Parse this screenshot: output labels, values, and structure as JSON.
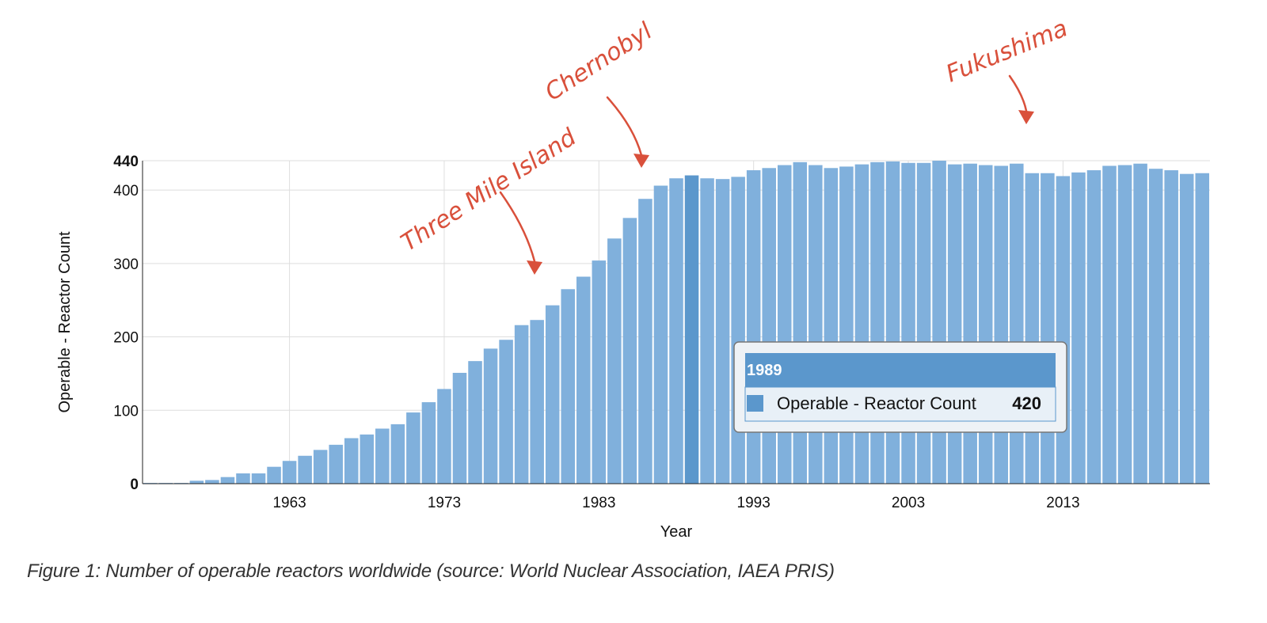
{
  "chart_data": {
    "type": "bar",
    "xlabel": "Year",
    "ylabel": "Operable - Reactor Count",
    "ylim": [
      0,
      440
    ],
    "yticks": [
      0,
      100,
      200,
      300,
      400,
      440
    ],
    "xticks": [
      1963,
      1973,
      1983,
      1993,
      2003,
      2013
    ],
    "grid": true,
    "colors": {
      "bar": "#80b0dc",
      "highlight": "#5b97cc",
      "tooltip_header": "#5b97cc",
      "annotation": "#d9503b"
    },
    "x": [
      1954,
      1955,
      1956,
      1957,
      1958,
      1959,
      1960,
      1961,
      1962,
      1963,
      1964,
      1965,
      1966,
      1967,
      1968,
      1969,
      1970,
      1971,
      1972,
      1973,
      1974,
      1975,
      1976,
      1977,
      1978,
      1979,
      1980,
      1981,
      1982,
      1983,
      1984,
      1985,
      1986,
      1987,
      1988,
      1989,
      1990,
      1991,
      1992,
      1993,
      1994,
      1995,
      1996,
      1997,
      1998,
      1999,
      2000,
      2001,
      2002,
      2003,
      2004,
      2005,
      2006,
      2007,
      2008,
      2009,
      2010,
      2011,
      2012,
      2013,
      2014,
      2015,
      2016,
      2017,
      2018,
      2019,
      2020,
      2021,
      2022
    ],
    "values": [
      1,
      1,
      1,
      4,
      5,
      9,
      14,
      14,
      23,
      31,
      38,
      46,
      53,
      62,
      67,
      75,
      81,
      97,
      111,
      129,
      151,
      167,
      184,
      196,
      216,
      223,
      243,
      265,
      282,
      304,
      334,
      362,
      388,
      406,
      416,
      420,
      416,
      415,
      418,
      427,
      430,
      434,
      438,
      434,
      430,
      432,
      435,
      438,
      439,
      437,
      437,
      440,
      435,
      436,
      434,
      433,
      436,
      423,
      423,
      419,
      424,
      427,
      433,
      434,
      436,
      429,
      427,
      422,
      423
    ],
    "highlight": {
      "year": "1989",
      "label": "Operable - Reactor Count",
      "value": "420"
    },
    "annotations": [
      {
        "text": "Three Mile Island",
        "year": 1979
      },
      {
        "text": "Chernobyl",
        "year": 1986
      },
      {
        "text": "Fukushima",
        "year": 2011
      }
    ]
  },
  "caption": "Figure 1: Number of operable reactors worldwide (source: World Nuclear Association, IAEA PRIS)"
}
